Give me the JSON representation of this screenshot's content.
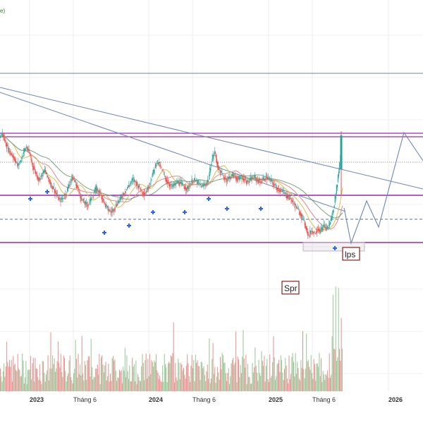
{
  "chart_data": {
    "type": "candlestick",
    "legend_fragment": "e)",
    "x_ticks": [
      {
        "label": "2023",
        "bold": true
      },
      {
        "label": "Tháng 6",
        "bold": false
      },
      {
        "label": "2024",
        "bold": true
      },
      {
        "label": "Tháng 6",
        "bold": false
      },
      {
        "label": "2025",
        "bold": true
      },
      {
        "label": "Tháng 6",
        "bold": false
      },
      {
        "label": "2026",
        "bold": true
      }
    ],
    "annotations": [
      {
        "text": "Spr"
      },
      {
        "text": "lps"
      }
    ],
    "colors": {
      "up": "#26a69a",
      "down": "#ef5350",
      "ma_fast": "#d4c24a",
      "ma_mid": "#e08a8a",
      "ma_slow": "#7aa37a",
      "resistance": "#9c27b0",
      "trendline": "#6b86b8",
      "projection": "#6b86b8",
      "volume_up": "#7cb87c",
      "volume_down": "#e57373",
      "signal": "#2962ff"
    },
    "price_series_relative": {
      "note_source": "visual trace, price axis not printed",
      "start_index": 0,
      "closes": [
        0.62,
        0.64,
        0.6,
        0.57,
        0.55,
        0.53,
        0.5,
        0.52,
        0.56,
        0.58,
        0.55,
        0.5,
        0.47,
        0.44,
        0.46,
        0.48,
        0.45,
        0.42,
        0.4,
        0.37,
        0.35,
        0.36,
        0.38,
        0.42,
        0.45,
        0.43,
        0.4,
        0.36,
        0.34,
        0.33,
        0.35,
        0.38,
        0.4,
        0.39,
        0.36,
        0.33,
        0.31,
        0.3,
        0.32,
        0.34,
        0.36,
        0.38,
        0.4,
        0.42,
        0.44,
        0.43,
        0.41,
        0.39,
        0.38,
        0.4,
        0.44,
        0.48,
        0.52,
        0.5,
        0.47,
        0.44,
        0.42,
        0.41,
        0.42,
        0.43,
        0.42,
        0.41,
        0.4,
        0.42,
        0.44,
        0.43,
        0.42,
        0.41,
        0.42,
        0.44,
        0.52,
        0.56,
        0.5,
        0.47,
        0.45,
        0.44,
        0.45,
        0.46,
        0.45,
        0.44,
        0.45,
        0.44,
        0.43,
        0.44,
        0.45,
        0.44,
        0.43,
        0.44,
        0.45,
        0.44,
        0.43,
        0.41,
        0.4,
        0.39,
        0.38,
        0.37,
        0.36,
        0.34,
        0.32,
        0.3,
        0.28,
        0.24,
        0.2,
        0.22,
        0.21,
        0.23,
        0.22,
        0.24,
        0.23,
        0.25,
        0.3,
        0.38,
        0.48,
        0.62
      ]
    }
  }
}
